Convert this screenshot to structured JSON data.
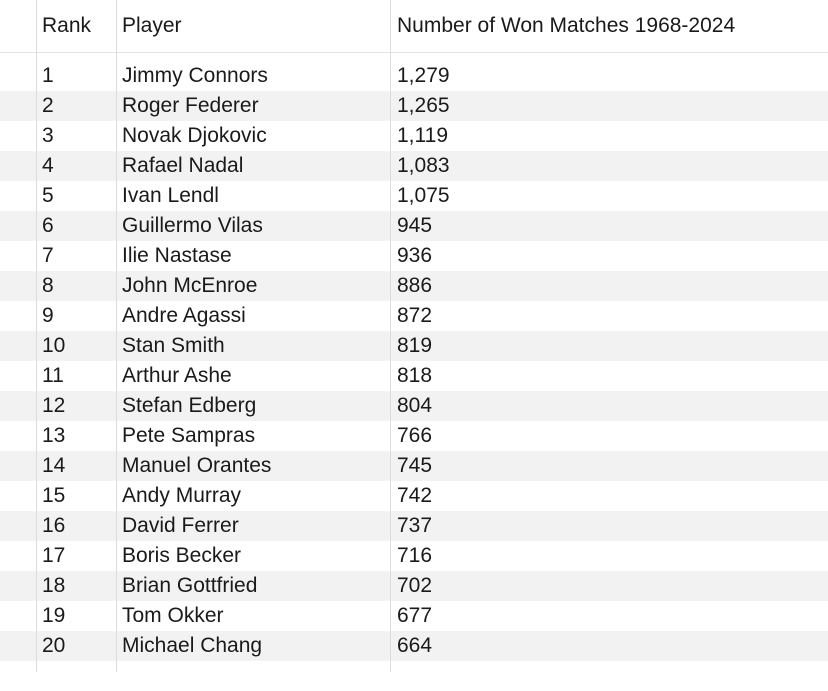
{
  "table": {
    "headers": {
      "rank": "Rank",
      "player": "Player",
      "won": "Number of Won Matches 1968-2024"
    },
    "rows": [
      {
        "rank": "1",
        "player": "Jimmy Connors",
        "won": "1,279"
      },
      {
        "rank": "2",
        "player": "Roger Federer",
        "won": "1,265"
      },
      {
        "rank": "3",
        "player": "Novak Djokovic",
        "won": "1,119"
      },
      {
        "rank": "4",
        "player": "Rafael Nadal",
        "won": "1,083"
      },
      {
        "rank": "5",
        "player": "Ivan Lendl",
        "won": "1,075"
      },
      {
        "rank": "6",
        "player": "Guillermo Vilas",
        "won": "945"
      },
      {
        "rank": "7",
        "player": "Ilie Nastase",
        "won": "936"
      },
      {
        "rank": "8",
        "player": "John McEnroe",
        "won": "886"
      },
      {
        "rank": "9",
        "player": "Andre Agassi",
        "won": "872"
      },
      {
        "rank": "10",
        "player": "Stan Smith",
        "won": "819"
      },
      {
        "rank": "11",
        "player": "Arthur Ashe",
        "won": "818"
      },
      {
        "rank": "12",
        "player": "Stefan Edberg",
        "won": "804"
      },
      {
        "rank": "13",
        "player": "Pete Sampras",
        "won": "766"
      },
      {
        "rank": "14",
        "player": "Manuel Orantes",
        "won": "745"
      },
      {
        "rank": "15",
        "player": "Andy Murray",
        "won": "742"
      },
      {
        "rank": "16",
        "player": "David Ferrer",
        "won": "737"
      },
      {
        "rank": "17",
        "player": "Boris Becker",
        "won": "716"
      },
      {
        "rank": "18",
        "player": "Brian Gottfried",
        "won": "702"
      },
      {
        "rank": "19",
        "player": "Tom Okker",
        "won": "677"
      },
      {
        "rank": "20",
        "player": "Michael Chang",
        "won": "664"
      }
    ]
  }
}
